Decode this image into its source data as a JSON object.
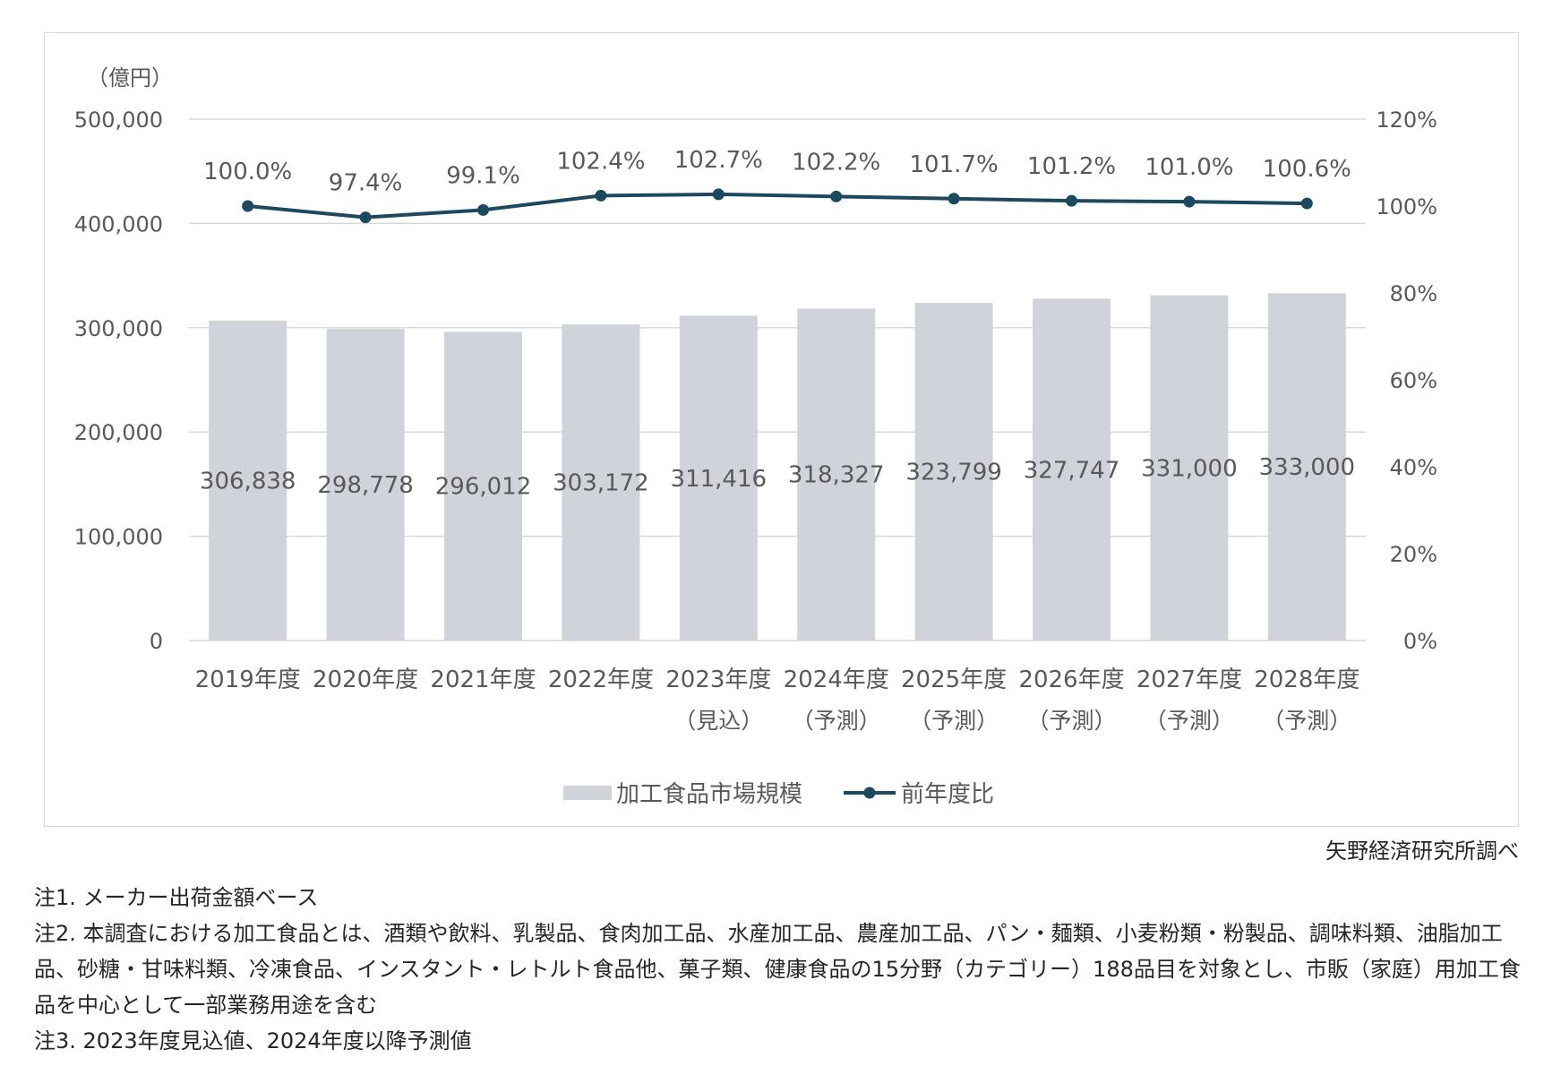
{
  "chart_data": {
    "type": "bar+line",
    "categories": [
      "2019年度",
      "2020年度",
      "2021年度",
      "2022年度",
      "2023年度",
      "2024年度",
      "2025年度",
      "2026年度",
      "2027年度",
      "2028年度"
    ],
    "category_sublabels": [
      "",
      "",
      "",
      "",
      "（見込）",
      "（予測）",
      "（予測）",
      "（予測）",
      "（予測）",
      "（予測）"
    ],
    "series": [
      {
        "name": "加工食品市場規模",
        "type": "bar",
        "axis": "left",
        "color": "#d0d3d9",
        "values": [
          306838,
          298778,
          296012,
          303172,
          311416,
          318327,
          323799,
          327747,
          331000,
          333000
        ],
        "labels": [
          "306,838",
          "298,778",
          "296,012",
          "303,172",
          "311,416",
          "318,327",
          "323,799",
          "327,747",
          "331,000",
          "333,000"
        ]
      },
      {
        "name": "前年度比",
        "type": "line",
        "axis": "right",
        "color": "#1b4a5e",
        "values": [
          100.0,
          97.4,
          99.1,
          102.4,
          102.7,
          102.2,
          101.7,
          101.2,
          101.0,
          100.6
        ],
        "labels": [
          "100.0%",
          "97.4%",
          "99.1%",
          "102.4%",
          "102.7%",
          "102.2%",
          "101.7%",
          "101.2%",
          "101.0%",
          "100.6%"
        ]
      }
    ],
    "y_left": {
      "unit_label": "（億円）",
      "ylim": [
        0,
        500000
      ],
      "ticks": [
        0,
        100000,
        200000,
        300000,
        400000,
        500000
      ],
      "tick_labels": [
        "0",
        "100,000",
        "200,000",
        "300,000",
        "400,000",
        "500,000"
      ]
    },
    "y_right": {
      "ylim": [
        0,
        120
      ],
      "ticks": [
        0,
        20,
        40,
        60,
        80,
        100,
        120
      ],
      "tick_labels": [
        "0%",
        "20%",
        "40%",
        "60%",
        "80%",
        "100%",
        "120%"
      ]
    },
    "grid": true,
    "legend_position": "bottom"
  },
  "source": "矢野経済研究所調べ",
  "notes": [
    "注1. メーカー出荷金額ベース",
    "注2. 本調査における加工食品とは、酒類や飲料、乳製品、食肉加工品、水産加工品、農産加工品、パン・麺類、小麦粉類・粉製品、調味料類、油脂加工品、砂糖・甘味料類、冷凍食品、インスタント・レトルト食品他、菓子類、健康食品の15分野（カテゴリー）188品目を対象とし、市販（家庭）用加工食品を中心として一部業務用途を含む",
    "注3. 2023年度見込値、2024年度以降予測値"
  ]
}
